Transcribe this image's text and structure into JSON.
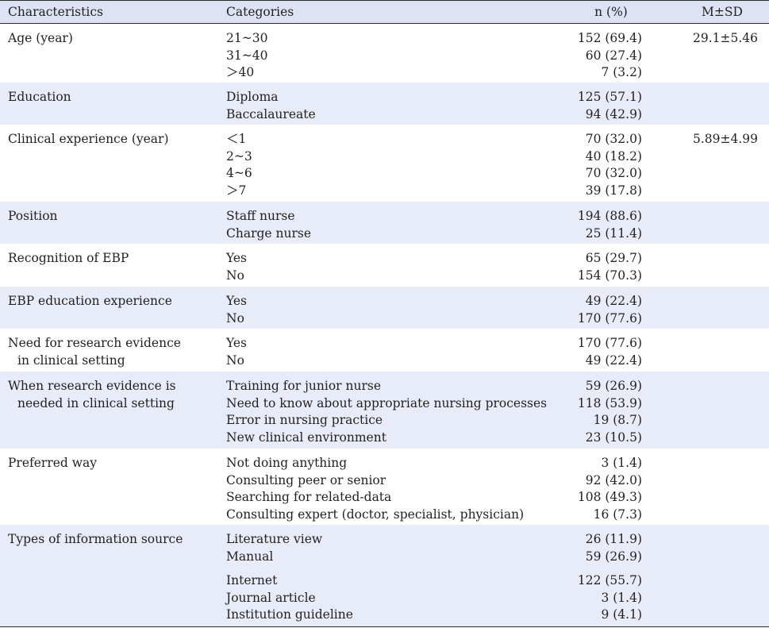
{
  "headers": {
    "characteristics": "Characteristics",
    "categories": "Categories",
    "n": "n (%)",
    "msd": "M±SD"
  },
  "rows": [
    {
      "char1": "Age (year)",
      "char2": "",
      "cats": [
        "21~30",
        "31~40",
        "＞40"
      ],
      "ns": [
        "152 (69.4)",
        "60 (27.4)",
        "7 (3.2)"
      ],
      "msd": "29.1±5.46"
    },
    {
      "char1": "Education",
      "char2": "",
      "cats": [
        "Diploma",
        "Baccalaureate"
      ],
      "ns": [
        "125 (57.1)",
        "94 (42.9)"
      ],
      "msd": ""
    },
    {
      "char1": "Clinical experience (year)",
      "char2": "",
      "cats": [
        "＜1",
        "2~3",
        "4~6",
        "＞7"
      ],
      "ns": [
        "70 (32.0)",
        "40 (18.2)",
        "70 (32.0)",
        "39 (17.8)"
      ],
      "msd": "5.89±4.99"
    },
    {
      "char1": "Position",
      "char2": "",
      "cats": [
        "Staff nurse",
        "Charge nurse"
      ],
      "ns": [
        "194 (88.6)",
        "25 (11.4)"
      ],
      "msd": ""
    },
    {
      "char1": "Recognition of EBP",
      "char2": "",
      "cats": [
        "Yes",
        "No"
      ],
      "ns": [
        "65 (29.7)",
        "154 (70.3)"
      ],
      "msd": ""
    },
    {
      "char1": "EBP education experience",
      "char2": "",
      "cats": [
        "Yes",
        "No"
      ],
      "ns": [
        "49 (22.4)",
        "170 (77.6)"
      ],
      "msd": ""
    },
    {
      "char1": "Need for research evidence",
      "char2": "in clinical setting",
      "cats": [
        "Yes",
        "No"
      ],
      "ns": [
        "170 (77.6)",
        "49 (22.4)"
      ],
      "msd": ""
    },
    {
      "char1": "When research evidence is",
      "char2": "needed in clinical setting",
      "cats": [
        "Training for junior nurse",
        "Need to know about appropriate nursing processes",
        "Error in nursing practice",
        "New clinical environment"
      ],
      "ns": [
        "59 (26.9)",
        "118 (53.9)",
        "19 (8.7)",
        "23 (10.5)"
      ],
      "msd": ""
    },
    {
      "char1": "Preferred way",
      "char2": "",
      "cats": [
        "Not doing anything",
        "Consulting peer or senior",
        "Searching for related-data",
        "Consulting expert (doctor, specialist, physician)"
      ],
      "ns": [
        "3 (1.4)",
        "92 (42.0)",
        "108 (49.3)",
        "16 (7.3)"
      ],
      "msd": ""
    },
    {
      "char1": "Types of information source",
      "char2": "",
      "cats": [
        "Literature view",
        "Manual"
      ],
      "ns": [
        "26 (11.9)",
        "59 (26.9)"
      ],
      "msd": ""
    },
    {
      "char1": "",
      "char2": "",
      "cats": [
        "Internet",
        "Journal article",
        "Institution guideline"
      ],
      "ns": [
        "122 (55.7)",
        "3 (1.4)",
        "9 (4.1)"
      ],
      "msd": ""
    }
  ]
}
